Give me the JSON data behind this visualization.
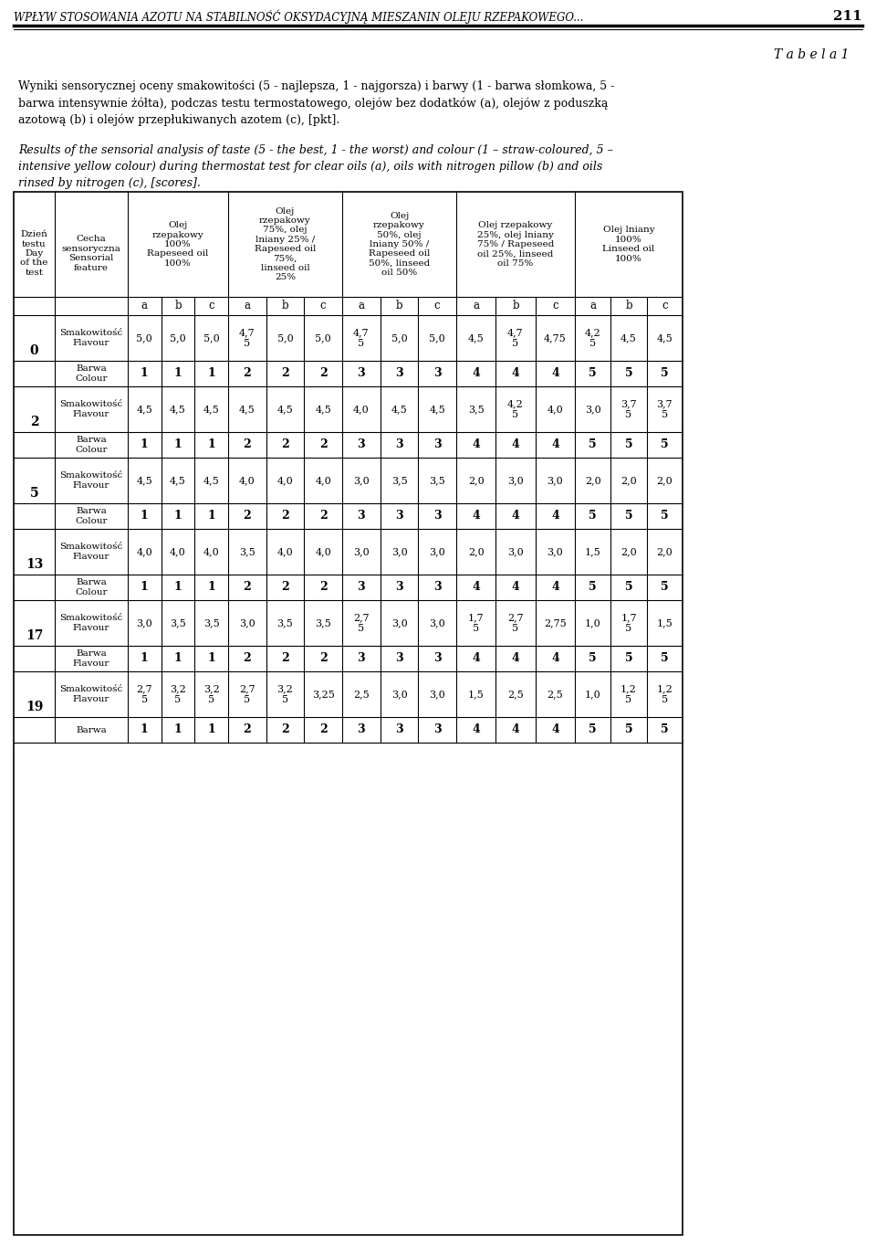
{
  "page_header": "WPŁYW STOSOWANIA AZOTU NA STABILNOŚĆ OKSYDACYJNĄ MIESZANIN OLEJU RZEPAKOWEGO...",
  "page_number": "211",
  "table_label": "T a b e l a 1",
  "caption_pl": "Wyniki sensorycznej oceny smakowitości (5 - najlepsza, 1 - najgorsza) i barwy (1 - barwa słomkowa, 5 -\nbarwa intensywnie żółta), podczas testu termostatowego, olejów bez dodatków (a), olejów z poduszką\nazotową (b) i olejów przepłukiwanych azotem (c), [pkt].",
  "caption_en": "Results of the sensorial analysis of taste (5 - the best, 1 - the worst) and colour (1 – straw-coloured, 5 –\nintensive yellow colour) during thermostat test for clear oils (a), oils with nitrogen pillow (b) and oils\nrinsed by nitrogen (c), [scores].",
  "col_headers": [
    "Dzień\ntestu\nDay\nof the\ntest",
    "Cecha\nsensoryczna\nSensorial\nfeature",
    "Olej\nrzepakowy\n100%\nRapeseed oil\n100%",
    "Olej\nrzepakowy\n75%, olej\nlniany 25% /\nRapeseed oil\n75%,\nlinseed oil\n25%",
    "Olej\nrzepakowy\n50%, olej\nlniany 50% /\nRapeseed oil\n50%, linseed\noil 50%",
    "Olej rzepakowy\n25%, olej lniany\n75% / Rapeseed\noil 25%, linseed\noil 75%",
    "Olej lniany\n100%\nLinseed oil\n100%"
  ],
  "sub_headers": [
    "a",
    "b",
    "c"
  ],
  "rows": [
    {
      "day": "0",
      "flavour_label": "Smakowitość\nFlavour",
      "colour_label": "Barwa\nColour",
      "flavour": [
        "5,0",
        "5,0",
        "5,0",
        "4,7\n5",
        "5,0",
        "5,0",
        "4,7\n5",
        "5,0",
        "5,0",
        "4,5",
        "4,7\n5",
        "4,75",
        "4,2\n5",
        "4,5",
        "4,5"
      ],
      "colour": [
        "1",
        "1",
        "1",
        "2",
        "2",
        "2",
        "3",
        "3",
        "3",
        "4",
        "4",
        "4",
        "5",
        "5",
        "5"
      ]
    },
    {
      "day": "2",
      "flavour_label": "Smakowitość\nFlavour",
      "colour_label": "Barwa\nColour",
      "flavour": [
        "4,5",
        "4,5",
        "4,5",
        "4,5",
        "4,5",
        "4,5",
        "4,0",
        "4,5",
        "4,5",
        "3,5",
        "4,2\n5",
        "4,0",
        "3,0",
        "3,7\n5",
        "3,7\n5"
      ],
      "colour": [
        "1",
        "1",
        "1",
        "2",
        "2",
        "2",
        "3",
        "3",
        "3",
        "4",
        "4",
        "4",
        "5",
        "5",
        "5"
      ]
    },
    {
      "day": "5",
      "flavour_label": "Smakowitość\nFlavour",
      "colour_label": "Barwa\nColour",
      "flavour": [
        "4,5",
        "4,5",
        "4,5",
        "4,0",
        "4,0",
        "4,0",
        "3,0",
        "3,5",
        "3,5",
        "2,0",
        "3,0",
        "3,0",
        "2,0",
        "2,0",
        "2,0"
      ],
      "colour": [
        "1",
        "1",
        "1",
        "2",
        "2",
        "2",
        "3",
        "3",
        "3",
        "4",
        "4",
        "4",
        "5",
        "5",
        "5"
      ]
    },
    {
      "day": "13",
      "flavour_label": "Smakowitość\nFlavour",
      "colour_label": "Barwa\nColour",
      "flavour": [
        "4,0",
        "4,0",
        "4,0",
        "3,5",
        "4,0",
        "4,0",
        "3,0",
        "3,0",
        "3,0",
        "2,0",
        "3,0",
        "3,0",
        "1,5",
        "2,0",
        "2,0"
      ],
      "colour": [
        "1",
        "1",
        "1",
        "2",
        "2",
        "2",
        "3",
        "3",
        "3",
        "4",
        "4",
        "4",
        "5",
        "5",
        "5"
      ]
    },
    {
      "day": "17",
      "flavour_label": "Smakowitość\nFlavour",
      "colour_label": "Barwa\nFlavour",
      "flavour": [
        "3,0",
        "3,5",
        "3,5",
        "3,0",
        "3,5",
        "3,5",
        "2,7\n5",
        "3,0",
        "3,0",
        "1,7\n5",
        "2,7\n5",
        "2,75",
        "1,0",
        "1,7\n5",
        "1,5"
      ],
      "colour": [
        "1",
        "1",
        "1",
        "2",
        "2",
        "2",
        "3",
        "3",
        "3",
        "4",
        "4",
        "4",
        "5",
        "5",
        "5"
      ]
    },
    {
      "day": "19",
      "flavour_label": "Smakowitość\nFlavour",
      "colour_label": "Barwa",
      "flavour": [
        "2,7\n5",
        "3,2\n5",
        "3,2\n5",
        "2,7\n5",
        "3,2\n5",
        "3,25",
        "2,5",
        "3,0",
        "3,0",
        "1,5",
        "2,5",
        "2,5",
        "1,0",
        "1,2\n5",
        "1,2\n5"
      ],
      "colour": [
        "1",
        "1",
        "1",
        "2",
        "2",
        "2",
        "3",
        "3",
        "3",
        "4",
        "4",
        "4",
        "5",
        "5",
        "5"
      ]
    }
  ],
  "bg_color": "#ffffff",
  "text_color": "#000000",
  "header_bg": "#ffffff",
  "line_color": "#000000"
}
